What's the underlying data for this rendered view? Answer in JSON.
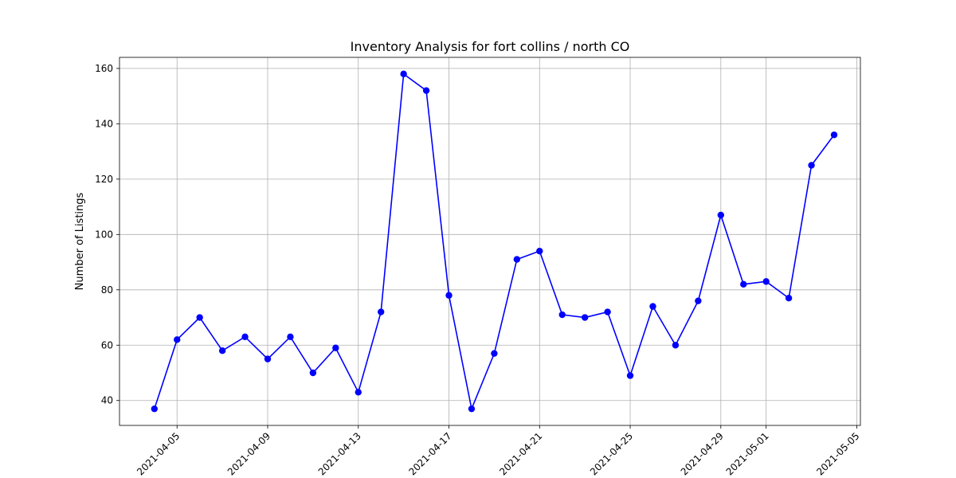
{
  "chart_data": {
    "type": "line",
    "title": "Inventory Analysis for fort collins / north CO",
    "xlabel": "",
    "ylabel": "Number of Listings",
    "x": [
      "2021-04-04",
      "2021-04-05",
      "2021-04-06",
      "2021-04-07",
      "2021-04-08",
      "2021-04-09",
      "2021-04-10",
      "2021-04-11",
      "2021-04-12",
      "2021-04-13",
      "2021-04-14",
      "2021-04-15",
      "2021-04-16",
      "2021-04-17",
      "2021-04-18",
      "2021-04-19",
      "2021-04-20",
      "2021-04-21",
      "2021-04-22",
      "2021-04-23",
      "2021-04-24",
      "2021-04-25",
      "2021-04-26",
      "2021-04-27",
      "2021-04-28",
      "2021-04-29",
      "2021-04-30",
      "2021-05-01",
      "2021-05-02",
      "2021-05-03",
      "2021-05-04"
    ],
    "series": [
      {
        "values": [
          37,
          62,
          70,
          58,
          63,
          55,
          63,
          50,
          59,
          43,
          72,
          158,
          152,
          78,
          37,
          57,
          91,
          94,
          71,
          70,
          72,
          49,
          74,
          60,
          76,
          107,
          82,
          83,
          77,
          125,
          136
        ],
        "color": "#0000ff"
      }
    ],
    "x_tick_labels": [
      "2021-04-05",
      "2021-04-09",
      "2021-04-13",
      "2021-04-17",
      "2021-04-21",
      "2021-04-25",
      "2021-04-29",
      "2021-05-01",
      "2021-05-05"
    ],
    "y_ticks": [
      40,
      60,
      80,
      100,
      120,
      140,
      160
    ],
    "xlim": [
      "2021-04-02",
      "2021-05-05"
    ],
    "ylim": [
      31,
      164
    ],
    "grid": true,
    "legend": "none"
  }
}
